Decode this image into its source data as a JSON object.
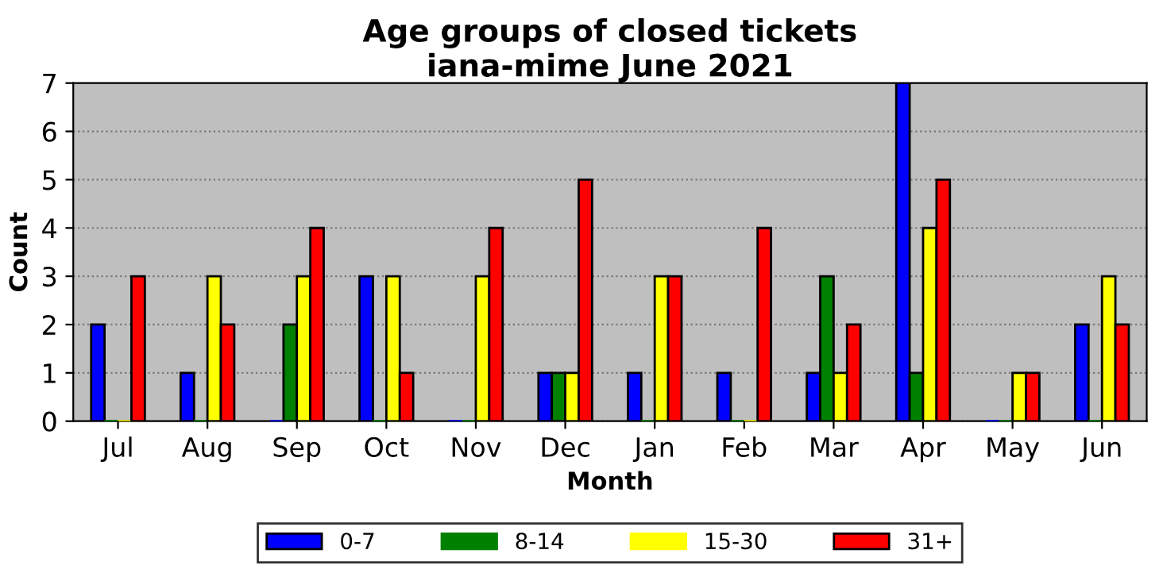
{
  "chart_data": {
    "type": "bar",
    "title": "Age groups of closed tickets\niana-mime June 2021",
    "xlabel": "Month",
    "ylabel": "Count",
    "categories": [
      "Jul",
      "Aug",
      "Sep",
      "Oct",
      "Nov",
      "Dec",
      "Jan",
      "Feb",
      "Mar",
      "Apr",
      "May",
      "Jun"
    ],
    "series": [
      {
        "name": "0-7",
        "color": "#0000ff",
        "values": [
          2,
          1,
          0,
          3,
          0,
          1,
          1,
          1,
          1,
          7,
          0,
          2
        ]
      },
      {
        "name": "8-14",
        "color": "#008000",
        "values": [
          0,
          0,
          2,
          0,
          0,
          1,
          0,
          0,
          3,
          1,
          0,
          0
        ]
      },
      {
        "name": "15-30",
        "color": "#ffff00",
        "values": [
          0,
          3,
          3,
          3,
          3,
          1,
          3,
          0,
          1,
          4,
          1,
          3
        ]
      },
      {
        "name": "31+",
        "color": "#ff0000",
        "values": [
          3,
          2,
          4,
          1,
          4,
          5,
          3,
          4,
          2,
          5,
          1,
          2
        ]
      }
    ],
    "ylim": [
      0,
      7
    ],
    "yticks": [
      0,
      1,
      2,
      3,
      4,
      5,
      6,
      7
    ],
    "grid": "y",
    "legend": "bottom"
  }
}
